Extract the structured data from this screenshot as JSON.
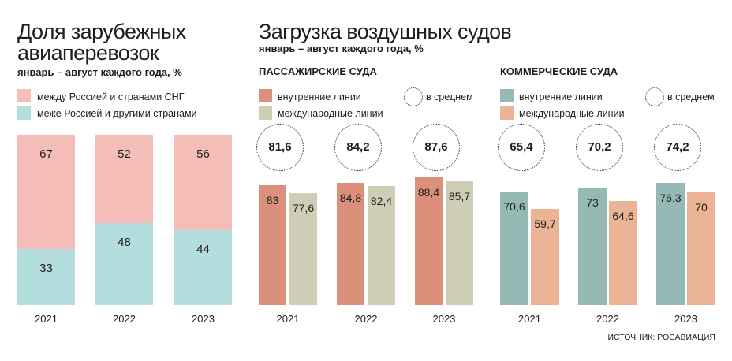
{
  "colors": {
    "text": "#1e1e1c",
    "ring": "#333333"
  },
  "load_section": {
    "title": "Загрузка воздушных судов",
    "subtitle": "январь – август каждого года, %"
  },
  "source": "ИСТОЧНИК: РОСАВИАЦИЯ",
  "chart_data": [
    {
      "type": "bar",
      "stacked": true,
      "title": "Доля зарубежных авиаперевозок",
      "subtitle": "январь – август каждого года, %",
      "categories": [
        "2021",
        "2022",
        "2023"
      ],
      "series": [
        {
          "name": "между Россией и странами СНГ",
          "values": [
            67,
            52,
            56
          ],
          "color": "#f5bdb8"
        },
        {
          "name": "меже Россией и другими странами",
          "values": [
            33,
            48,
            44
          ],
          "color": "#b4dedd"
        }
      ],
      "ylim": [
        0,
        100
      ],
      "grid": false,
      "legend": "top-left"
    },
    {
      "type": "bar",
      "title": "ПАССАЖИРСКИЕ СУДА",
      "categories": [
        "2021",
        "2022",
        "2023"
      ],
      "series": [
        {
          "name": "внутренние линии",
          "values": [
            83,
            84.8,
            88.4
          ],
          "color": "#dc8f7b"
        },
        {
          "name": "международные линии",
          "values": [
            77.6,
            82.4,
            85.7
          ],
          "color": "#cecdb5"
        }
      ],
      "average": {
        "label": "в среднем",
        "values": [
          81.6,
          84.2,
          87.6
        ]
      },
      "ylim": [
        0,
        118
      ],
      "grid": false,
      "legend": "top-left"
    },
    {
      "type": "bar",
      "title": "КОММЕРЧЕСКИЕ СУДА",
      "categories": [
        "2021",
        "2022",
        "2023"
      ],
      "series": [
        {
          "name": "внутренние линии",
          "values": [
            70.6,
            73,
            76.3
          ],
          "color": "#95bab6"
        },
        {
          "name": "международные линии",
          "values": [
            59.7,
            64.6,
            70
          ],
          "color": "#ebb497"
        }
      ],
      "average": {
        "label": "в среднем",
        "values": [
          65.4,
          70.2,
          74.2
        ]
      },
      "ylim": [
        0,
        106
      ],
      "grid": false,
      "legend": "top-left"
    }
  ]
}
